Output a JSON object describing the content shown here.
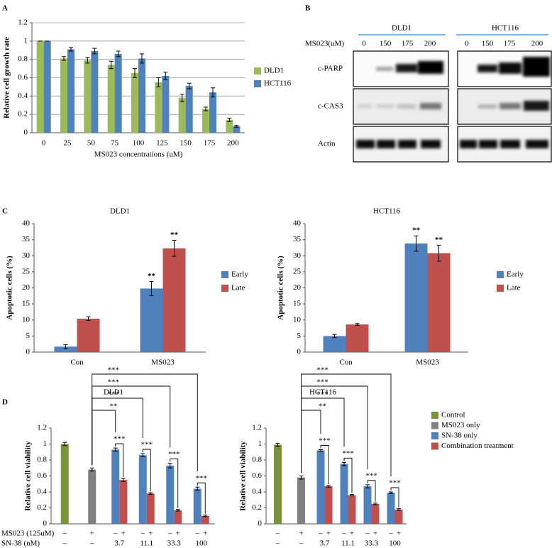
{
  "chart_data": [
    {
      "panel": "A",
      "type": "bar",
      "categories": [
        "0",
        "25",
        "50",
        "75",
        "100",
        "125",
        "150",
        "175",
        "200"
      ],
      "series": [
        {
          "name": "DLD1",
          "color": "#9bbb59",
          "values": [
            1,
            0.81,
            0.79,
            0.74,
            0.65,
            0.55,
            0.38,
            0.26,
            0.14
          ],
          "errors": [
            0,
            0.02,
            0.03,
            0.04,
            0.05,
            0.05,
            0.04,
            0.02,
            0.02
          ]
        },
        {
          "name": "HCT116",
          "color": "#4f81bd",
          "values": [
            1,
            0.91,
            0.89,
            0.86,
            0.81,
            0.62,
            0.51,
            0.44,
            0.07
          ],
          "errors": [
            0,
            0.02,
            0.03,
            0.03,
            0.05,
            0.04,
            0.03,
            0.05,
            0.01
          ]
        }
      ],
      "xlabel": "MS023 concentrations (uM)",
      "ylabel": "Relative cell growth rate",
      "ylim": [
        0,
        1.2
      ],
      "yticks": [
        0,
        0.2,
        0.4,
        0.6,
        0.8,
        1,
        1.2
      ],
      "grid": true,
      "legend": "right"
    },
    {
      "panel": "C",
      "type": "bar",
      "title": "DLD1",
      "categories": [
        "Con",
        "MS023"
      ],
      "series": [
        {
          "name": "Early",
          "color": "#4f81bd",
          "values": [
            1.7,
            19.8
          ],
          "errors": [
            0.6,
            2.2
          ],
          "annotations": [
            null,
            "**"
          ]
        },
        {
          "name": "Late",
          "color": "#c0504d",
          "values": [
            10.4,
            32.3
          ],
          "errors": [
            0.6,
            2.5
          ],
          "annotations": [
            null,
            "**"
          ]
        }
      ],
      "ylabel": "Apoptotic cells (%)",
      "ylim": [
        0,
        40
      ],
      "yticks": [
        0,
        5,
        10,
        15,
        20,
        25,
        30,
        35,
        40
      ],
      "grid": false,
      "legend": "right"
    },
    {
      "type": "bar",
      "title": "HCT116",
      "categories": [
        "Con",
        "MS023"
      ],
      "series": [
        {
          "name": "Early",
          "color": "#4f81bd",
          "values": [
            5.0,
            33.8
          ],
          "errors": [
            0.5,
            2.4
          ],
          "annotations": [
            null,
            "**"
          ]
        },
        {
          "name": "Late",
          "color": "#c0504d",
          "values": [
            8.6,
            30.8
          ],
          "errors": [
            0.3,
            2.5
          ],
          "annotations": [
            null,
            "**"
          ]
        }
      ],
      "ylabel": "Apoptotic cells (%)",
      "ylim": [
        0,
        40
      ],
      "yticks": [
        0,
        5,
        10,
        15,
        20,
        25,
        30,
        35,
        40
      ],
      "grid": false,
      "legend": "right"
    },
    {
      "panel": "D",
      "type": "bar",
      "title": "DLD1",
      "series": [
        {
          "color": "#77933c",
          "values": [
            1.0,
            null,
            null,
            null,
            null,
            null
          ],
          "errors": [
            0.02,
            null,
            null,
            null,
            null,
            null
          ]
        },
        {
          "color": "#808080",
          "values": [
            null,
            0.68,
            null,
            null,
            null,
            null
          ],
          "errors": [
            null,
            0.02,
            null,
            null,
            null,
            null
          ]
        },
        {
          "color": "#4f81bd",
          "values": [
            null,
            null,
            0.93,
            0.86,
            0.73,
            0.44
          ],
          "errors": [
            null,
            null,
            0.02,
            0.02,
            0.03,
            0.02
          ]
        },
        {
          "color": "#c0504d",
          "values": [
            null,
            null,
            0.55,
            0.38,
            0.17,
            0.1
          ],
          "errors": [
            null,
            null,
            0.02,
            0.01,
            0.01,
            0.01
          ]
        }
      ],
      "ylabel": "Relative cell viability",
      "ylim": [
        0,
        1.2
      ],
      "yticks": [
        0,
        0.2,
        0.4,
        0.6,
        0.8,
        1,
        1.2
      ],
      "grid": false,
      "row_labels": [
        "MS023 (125uM)",
        "SN-38 (nM)"
      ],
      "rows": [
        [
          "–",
          "+",
          "–",
          "+",
          "–",
          "+",
          "–",
          "+",
          "–",
          "+"
        ],
        [
          "–",
          "–",
          "3.7",
          "11.1",
          "33.3",
          "100"
        ]
      ],
      "control_comparisons": [
        "**",
        "***",
        "***",
        "***"
      ],
      "pair_comparisons": [
        "***",
        "***",
        "***",
        "***"
      ]
    },
    {
      "type": "bar",
      "title": "HCT116",
      "series": [
        {
          "name": "Control",
          "color": "#77933c",
          "values": [
            0.99,
            null,
            null,
            null,
            null,
            null
          ],
          "errors": [
            0.02,
            null,
            null,
            null,
            null,
            null
          ]
        },
        {
          "name": "MS023 only",
          "color": "#808080",
          "values": [
            null,
            0.58,
            null,
            null,
            null,
            null
          ],
          "errors": [
            null,
            0.02,
            null,
            null,
            null,
            null
          ]
        },
        {
          "name": "SN-38 only",
          "color": "#4f81bd",
          "values": [
            null,
            null,
            0.92,
            0.75,
            0.47,
            0.39
          ],
          "errors": [
            null,
            null,
            0.01,
            0.02,
            0.02,
            0.01
          ]
        },
        {
          "name": "Combination treatment",
          "color": "#c0504d",
          "values": [
            null,
            null,
            0.47,
            0.36,
            0.25,
            0.18
          ],
          "errors": [
            null,
            null,
            0.01,
            0.01,
            0.01,
            0.01
          ]
        }
      ],
      "ylabel": "Relative cell viability",
      "ylim": [
        0,
        1.2
      ],
      "yticks": [
        0,
        0.2,
        0.4,
        0.6,
        0.8,
        1,
        1.2
      ],
      "grid": false,
      "legend": "right",
      "rows": [
        [
          "–",
          "+",
          "–",
          "+",
          "–",
          "+",
          "–",
          "+",
          "–",
          "+"
        ],
        [
          "–",
          "–",
          "3.7",
          "11.1",
          "33.3",
          "100"
        ]
      ],
      "control_comparisons": [
        "**",
        "***",
        "***",
        "***"
      ],
      "pair_comparisons": [
        "***",
        "***",
        "***",
        "***"
      ]
    }
  ],
  "blot": {
    "panel": "B",
    "treatment_label": "MS023(uM)",
    "cell_lines": [
      {
        "name": "DLD1",
        "lanes": [
          "0",
          "150",
          "175",
          "200"
        ]
      },
      {
        "name": "HCT116",
        "lanes": [
          "0",
          "150",
          "175",
          "200"
        ]
      }
    ],
    "proteins": [
      "c-PARP",
      "c-CAS3",
      "Actin"
    ]
  }
}
